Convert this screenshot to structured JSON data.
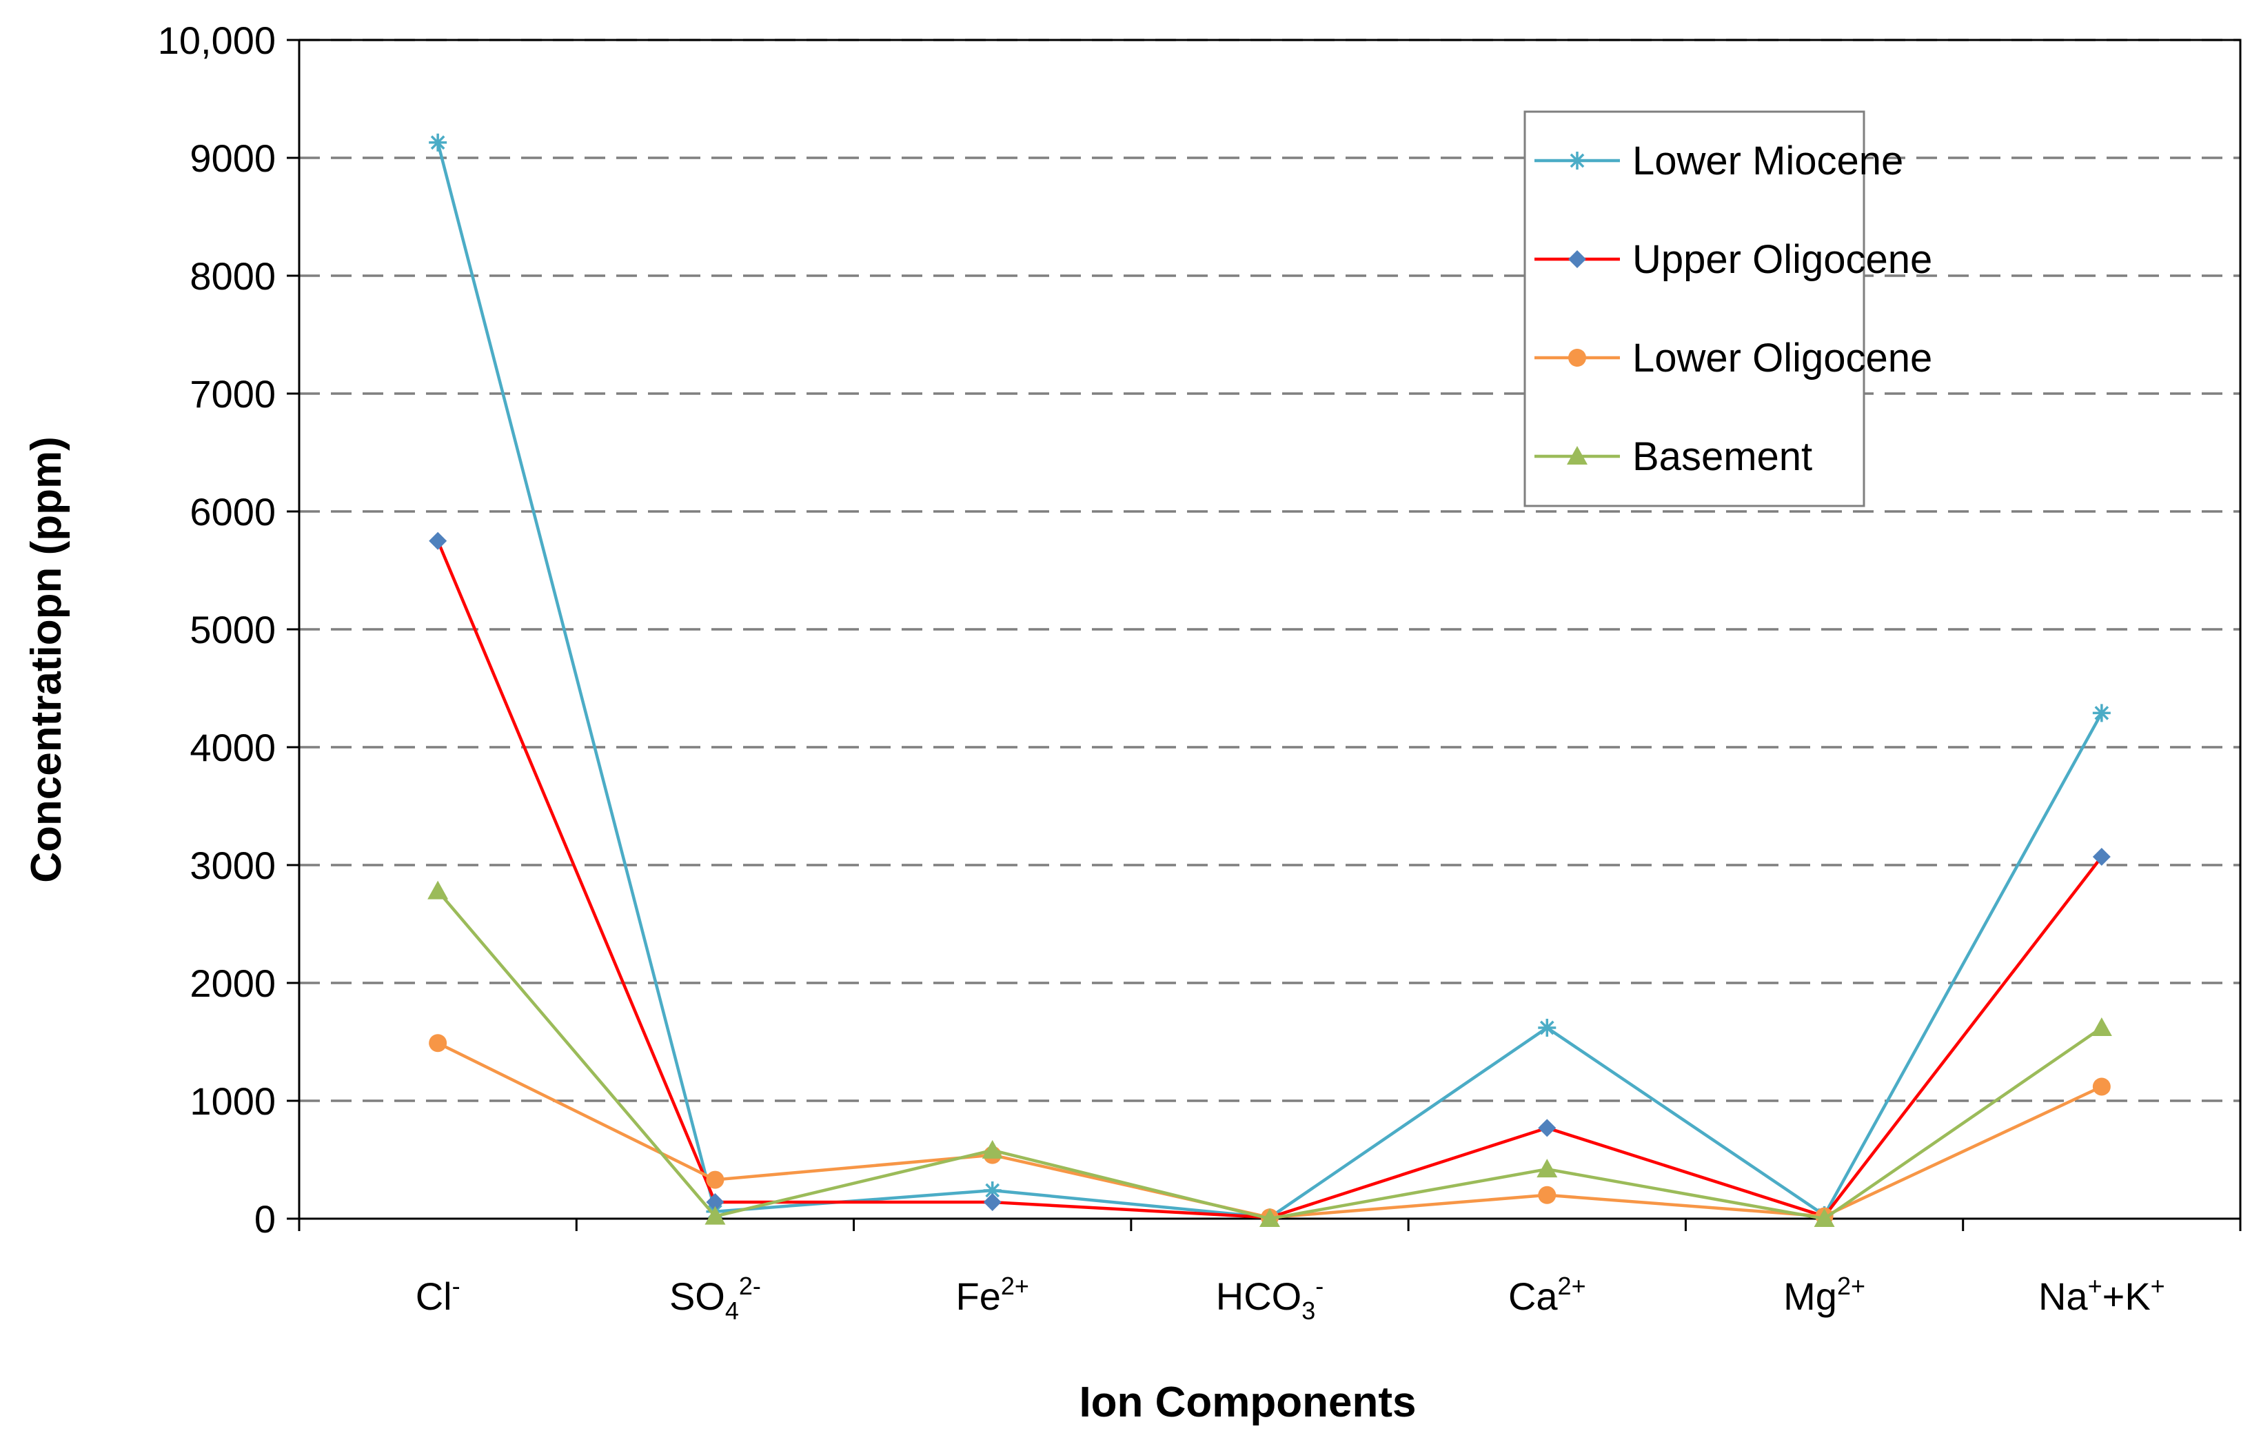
{
  "chart_data": {
    "type": "line",
    "title": "",
    "xlabel": "Ion Components",
    "ylabel": "Concentratiopn (ppm)",
    "ylim": [
      0,
      10000
    ],
    "y_ticks": [
      "0",
      "1000",
      "2000",
      "3000",
      "4000",
      "5000",
      "6000",
      "7000",
      "8000",
      "9000",
      "10,000"
    ],
    "grid": "horizontal dashed",
    "legend_position": "top-right",
    "categories": [
      {
        "base": "Cl",
        "sub": "",
        "sup": "-"
      },
      {
        "base": "SO",
        "sub": "4",
        "sup": "2-"
      },
      {
        "base": "Fe",
        "sub": "",
        "sup": "2+"
      },
      {
        "base": "HCO",
        "sub": "3",
        "sup": "-"
      },
      {
        "base": "Ca",
        "sub": "",
        "sup": "2+"
      },
      {
        "base": "Mg",
        "sub": "",
        "sup": "2+"
      },
      {
        "base": "Na",
        "sub": "",
        "sup": "+",
        "base2": "+K",
        "sup2": "+"
      }
    ],
    "series": [
      {
        "name": "Lower Miocene",
        "color": "#4bacc6",
        "marker": "star",
        "values": [
          9130,
          60,
          240,
          10,
          1620,
          30,
          4290
        ]
      },
      {
        "name": "Upper Oligocene",
        "color": "#ff0000",
        "marker_color": "#4f81bd",
        "marker": "diamond",
        "values": [
          5750,
          140,
          140,
          10,
          770,
          20,
          3070
        ]
      },
      {
        "name": "Lower Oligocene",
        "color": "#f79646",
        "marker": "circle",
        "values": [
          1490,
          330,
          540,
          10,
          200,
          20,
          1120
        ]
      },
      {
        "name": "Basement",
        "color": "#9bbb59",
        "marker": "triangle",
        "values": [
          2780,
          20,
          580,
          0,
          420,
          0,
          1620
        ]
      }
    ]
  }
}
